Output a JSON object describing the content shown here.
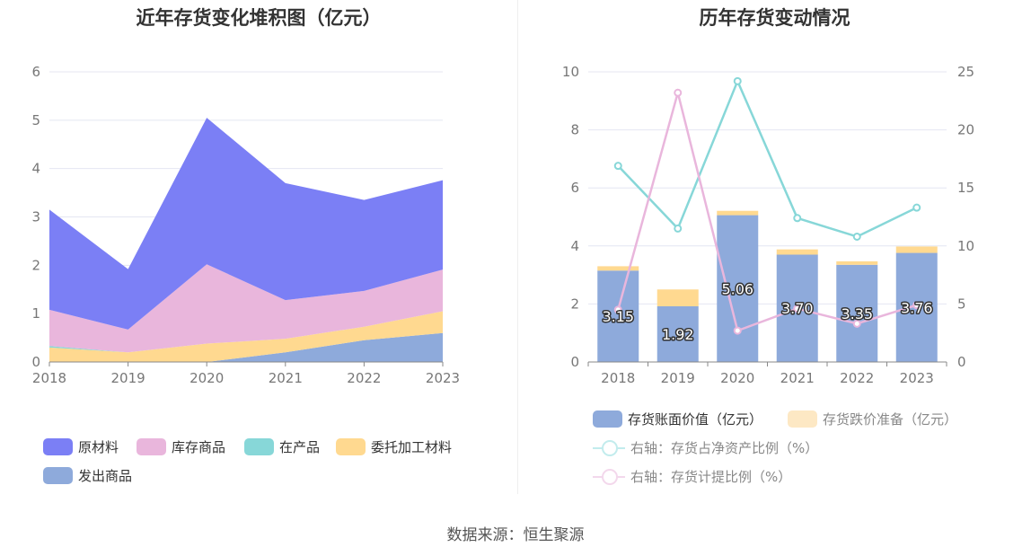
{
  "left_chart": {
    "title": "近年存货变化堆积图（亿元）",
    "chart_data": {
      "type": "area",
      "stacked": true,
      "categories": [
        "2018",
        "2019",
        "2020",
        "2021",
        "2022",
        "2023"
      ],
      "ylim": [
        0,
        6
      ],
      "yticks": [
        "0",
        "1",
        "2",
        "3",
        "4",
        "5",
        "6"
      ],
      "grid": true,
      "legend_position": "bottom",
      "series": [
        {
          "name": "发出商品",
          "color": "#8eaadb",
          "values": [
            0,
            0,
            0,
            0.2,
            0.45,
            0.6
          ]
        },
        {
          "name": "委托加工材料",
          "color": "#ffd990",
          "values": [
            0.3,
            0.2,
            0.38,
            0.28,
            0.28,
            0.45
          ]
        },
        {
          "name": "在产品",
          "color": "#87d7d8",
          "values": [
            0.03,
            0,
            0,
            0,
            0,
            0
          ]
        },
        {
          "name": "库存商品",
          "color": "#e9b6dc",
          "values": [
            0.75,
            0.47,
            1.64,
            0.8,
            0.74,
            0.86
          ]
        },
        {
          "name": "原材料",
          "color": "#7b7ff5",
          "values": [
            2.07,
            1.25,
            3.03,
            2.42,
            1.88,
            1.85
          ]
        }
      ]
    },
    "legend": [
      {
        "name": "原材料",
        "color": "#7b7ff5"
      },
      {
        "name": "库存商品",
        "color": "#e9b6dc"
      },
      {
        "name": "在产品",
        "color": "#87d7d8"
      },
      {
        "name": "委托加工材料",
        "color": "#ffd990"
      },
      {
        "name": "发出商品",
        "color": "#8eaadb"
      }
    ]
  },
  "right_chart": {
    "title": "历年存货变动情况",
    "chart_data": {
      "type": "bar",
      "categories": [
        "2018",
        "2019",
        "2020",
        "2021",
        "2022",
        "2023"
      ],
      "ylim_left": [
        0,
        10
      ],
      "ylim_right": [
        0,
        25
      ],
      "yticks_left": [
        "0",
        "2",
        "4",
        "6",
        "8",
        "10"
      ],
      "yticks_right": [
        "0",
        "5",
        "10",
        "15",
        "20",
        "25"
      ],
      "grid": true,
      "legend_position": "bottom",
      "bars": [
        {
          "name": "存货账面价值（亿元）",
          "color": "#8eaadb",
          "values": [
            3.15,
            1.92,
            5.06,
            3.7,
            3.35,
            3.76
          ],
          "labels": [
            "3.15",
            "1.92",
            "5.06",
            "3.70",
            "3.35",
            "3.76"
          ]
        },
        {
          "name": "存货跌价准备（亿元）",
          "color": "#ffd990",
          "values": [
            0.15,
            0.58,
            0.15,
            0.18,
            0.12,
            0.22
          ]
        }
      ],
      "lines": [
        {
          "name": "右轴：存货占净资产比例（%）",
          "color": "#87d7d8",
          "axis": "right",
          "values": [
            16.9,
            11.5,
            24.2,
            12.4,
            10.8,
            13.3
          ]
        },
        {
          "name": "右轴：存货计提比例（%）",
          "color": "#e9b6dc",
          "axis": "right",
          "values": [
            4.5,
            23.2,
            2.7,
            4.6,
            3.3,
            4.9
          ]
        }
      ]
    },
    "legend": {
      "bar1": "存货账面价值（亿元）",
      "bar2": "存货跌价准备（亿元）",
      "line1": "右轴：存货占净资产比例（%）",
      "line2": "右轴：存货计提比例（%）"
    }
  },
  "footer": "数据来源：恒生聚源"
}
